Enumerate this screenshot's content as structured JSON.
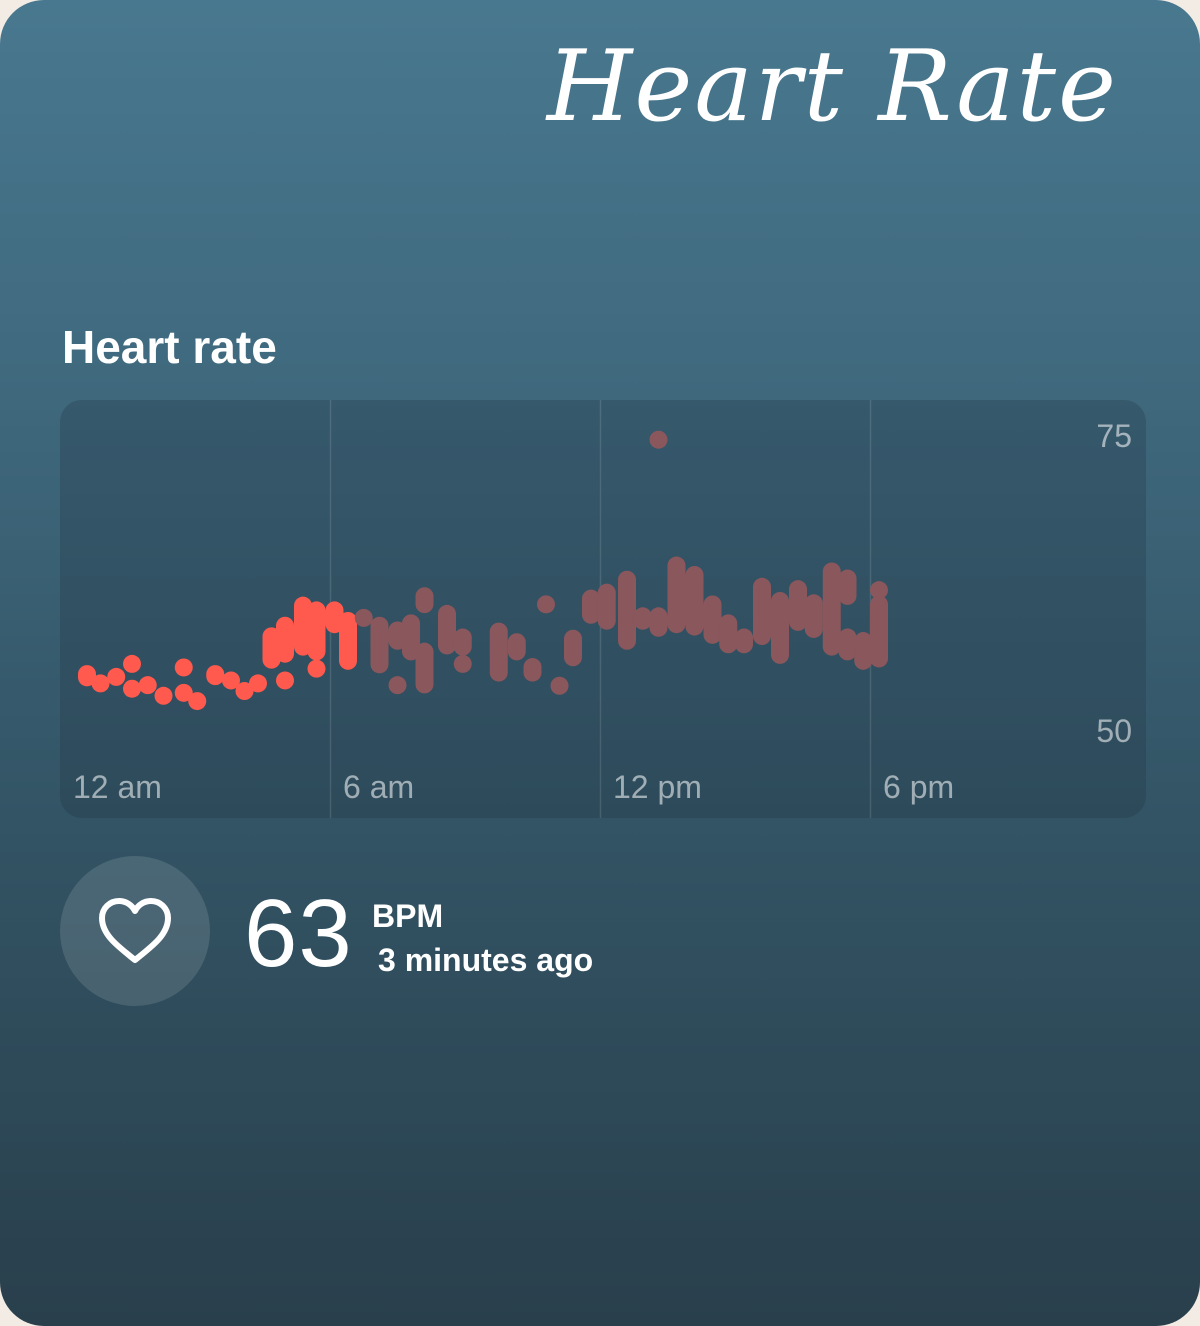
{
  "header": {
    "title": "Heart Rate"
  },
  "section": {
    "title": "Heart rate"
  },
  "current": {
    "value": "63",
    "unit": "BPM",
    "time": "3 minutes ago",
    "icon": "heart-icon"
  },
  "colors": {
    "active": "#ff5a4d",
    "inactive": "#8a575c"
  },
  "chart_data": {
    "type": "range-bar",
    "x_ticks": [
      "12 am",
      "6 am",
      "12 pm",
      "6 pm"
    ],
    "y_ticks": [
      75,
      50
    ],
    "ylim": [
      50,
      75
    ],
    "xlim_hours": [
      0,
      24
    ],
    "highlight_until_hour": 6,
    "series": [
      {
        "x": 0.2,
        "low": 53.7,
        "high": 55.5
      },
      {
        "x": 0.5,
        "low": 53.4,
        "high": 54.5
      },
      {
        "x": 0.85,
        "low": 53.9,
        "high": 55.1
      },
      {
        "x": 1.2,
        "low": 54.9,
        "high": 56.3
      },
      {
        "x": 1.2,
        "low": 53.2,
        "high": 53.8
      },
      {
        "x": 1.55,
        "low": 53.3,
        "high": 54.3
      },
      {
        "x": 1.9,
        "low": 52.4,
        "high": 53.4
      },
      {
        "x": 2.35,
        "low": 52.5,
        "high": 53.8
      },
      {
        "x": 2.35,
        "low": 55.0,
        "high": 55.6
      },
      {
        "x": 2.65,
        "low": 51.8,
        "high": 53.1
      },
      {
        "x": 3.05,
        "low": 53.8,
        "high": 55.5
      },
      {
        "x": 3.4,
        "low": 53.9,
        "high": 54.5
      },
      {
        "x": 3.7,
        "low": 53.0,
        "high": 53.6
      },
      {
        "x": 4.0,
        "low": 53.3,
        "high": 54.6
      },
      {
        "x": 4.3,
        "low": 55.2,
        "high": 58.7
      },
      {
        "x": 4.6,
        "low": 55.7,
        "high": 59.6
      },
      {
        "x": 4.6,
        "low": 53.8,
        "high": 54.6
      },
      {
        "x": 5.0,
        "low": 56.3,
        "high": 61.3
      },
      {
        "x": 5.3,
        "low": 55.9,
        "high": 60.9
      },
      {
        "x": 5.3,
        "low": 54.9,
        "high": 55.5
      },
      {
        "x": 5.7,
        "low": 58.2,
        "high": 60.9
      },
      {
        "x": 6.0,
        "low": 55.1,
        "high": 60.0
      },
      {
        "x": 6.35,
        "low": 58.8,
        "high": 60.2
      },
      {
        "x": 6.7,
        "low": 54.8,
        "high": 59.6
      },
      {
        "x": 7.1,
        "low": 56.8,
        "high": 59.2
      },
      {
        "x": 7.1,
        "low": 53.3,
        "high": 54.3
      },
      {
        "x": 7.4,
        "low": 55.9,
        "high": 59.8
      },
      {
        "x": 7.7,
        "low": 53.1,
        "high": 57.4
      },
      {
        "x": 7.7,
        "low": 59.9,
        "high": 62.1
      },
      {
        "x": 8.2,
        "low": 56.4,
        "high": 60.6
      },
      {
        "x": 8.55,
        "low": 56.3,
        "high": 58.6
      },
      {
        "x": 8.55,
        "low": 55.3,
        "high": 55.9
      },
      {
        "x": 9.35,
        "low": 54.1,
        "high": 59.1
      },
      {
        "x": 9.75,
        "low": 55.9,
        "high": 58.2
      },
      {
        "x": 10.1,
        "low": 54.1,
        "high": 56.1
      },
      {
        "x": 10.4,
        "low": 60.3,
        "high": 61.0
      },
      {
        "x": 10.7,
        "low": 53.2,
        "high": 54.3
      },
      {
        "x": 11.0,
        "low": 55.4,
        "high": 58.5
      },
      {
        "x": 11.4,
        "low": 59.0,
        "high": 61.9
      },
      {
        "x": 11.75,
        "low": 58.5,
        "high": 62.4
      },
      {
        "x": 12.2,
        "low": 56.8,
        "high": 63.5
      },
      {
        "x": 12.55,
        "low": 58.5,
        "high": 60.4
      },
      {
        "x": 12.9,
        "low": 57.9,
        "high": 60.4
      },
      {
        "x": 12.9,
        "low": 74.3,
        "high": 74.9
      },
      {
        "x": 13.3,
        "low": 58.2,
        "high": 64.7
      },
      {
        "x": 13.7,
        "low": 58.0,
        "high": 63.9
      },
      {
        "x": 14.1,
        "low": 57.3,
        "high": 61.4
      },
      {
        "x": 14.45,
        "low": 56.5,
        "high": 59.8
      },
      {
        "x": 14.8,
        "low": 56.5,
        "high": 58.6
      },
      {
        "x": 15.2,
        "low": 57.2,
        "high": 62.9
      },
      {
        "x": 15.6,
        "low": 55.6,
        "high": 61.7
      },
      {
        "x": 16.0,
        "low": 58.4,
        "high": 62.7
      },
      {
        "x": 16.35,
        "low": 57.8,
        "high": 61.5
      },
      {
        "x": 16.75,
        "low": 58.1,
        "high": 64.2
      },
      {
        "x": 16.75,
        "low": 56.3,
        "high": 59.4
      },
      {
        "x": 17.1,
        "low": 60.6,
        "high": 63.6
      },
      {
        "x": 17.1,
        "low": 55.9,
        "high": 58.6
      },
      {
        "x": 17.45,
        "low": 55.1,
        "high": 58.3
      },
      {
        "x": 17.8,
        "low": 55.3,
        "high": 61.4
      },
      {
        "x": 17.8,
        "low": 61.6,
        "high": 62.1
      }
    ]
  }
}
